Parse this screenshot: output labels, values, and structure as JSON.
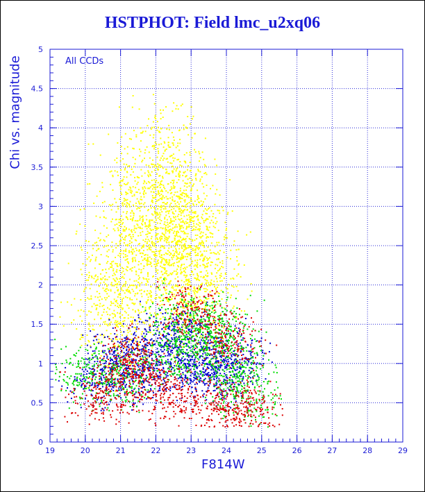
{
  "chart_data": {
    "type": "scatter",
    "title": "HSTPHOT: Field lmc_u2xq06",
    "ylabel": "Chi vs. magnitude",
    "xlabel": "F814W",
    "annotation": "All CCDs",
    "xlim": [
      19,
      29
    ],
    "ylim": [
      0,
      5
    ],
    "x_ticks": [
      "19",
      "20",
      "21",
      "22",
      "23",
      "24",
      "25",
      "26",
      "27",
      "28",
      "29"
    ],
    "y_ticks": [
      "0",
      "0.5",
      "1",
      "1.5",
      "2",
      "2.5",
      "3",
      "3.5",
      "4",
      "4.5",
      "5"
    ],
    "grid": true,
    "colors": {
      "axis": "#1a1ad6",
      "grid": "#2a2ad8",
      "text": "#1a1ad6"
    },
    "series": [
      {
        "color": "#ffff00",
        "centers": [
          [
            21.6,
            2.5
          ],
          [
            22.2,
            2.2
          ],
          [
            22.6,
            2.6
          ],
          [
            21.3,
            3.1
          ],
          [
            22.3,
            3.6
          ],
          [
            23.0,
            1.9
          ],
          [
            21.0,
            1.6
          ],
          [
            22.8,
            3.0
          ],
          [
            23.5,
            2.3
          ],
          [
            20.6,
            2.0
          ]
        ]
      },
      {
        "color": "#0000cc",
        "centers": [
          [
            21.5,
            0.9
          ],
          [
            22.5,
            1.0
          ],
          [
            23.3,
            0.95
          ],
          [
            23.9,
            0.85
          ],
          [
            20.5,
            0.8
          ],
          [
            22.0,
            1.3
          ],
          [
            23.0,
            1.4
          ],
          [
            24.2,
            1.1
          ],
          [
            21.0,
            1.1
          ]
        ]
      },
      {
        "color": "#00dd00",
        "centers": [
          [
            24.3,
            0.9
          ],
          [
            23.5,
            1.2
          ],
          [
            22.5,
            1.1
          ],
          [
            21.0,
            0.8
          ],
          [
            20.0,
            0.9
          ],
          [
            24.5,
            0.6
          ],
          [
            22.8,
            1.6
          ],
          [
            23.8,
            1.5
          ]
        ]
      },
      {
        "color": "#dd0000",
        "centers": [
          [
            21.5,
            0.8
          ],
          [
            23.8,
            0.5
          ],
          [
            22.5,
            0.6
          ],
          [
            20.5,
            0.6
          ],
          [
            24.0,
            1.3
          ],
          [
            23.0,
            1.7
          ],
          [
            21.3,
            1.1
          ],
          [
            24.6,
            0.4
          ]
        ]
      }
    ]
  }
}
